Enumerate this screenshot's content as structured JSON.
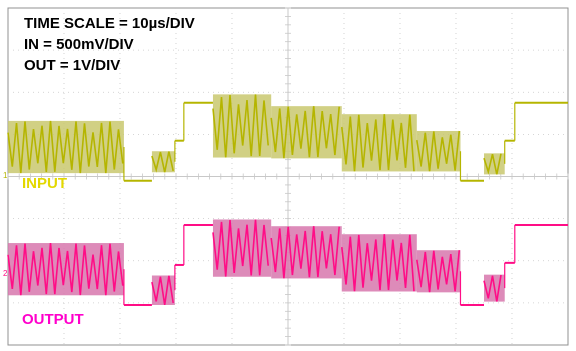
{
  "annotations": {
    "time_scale": "TIME SCALE = 10µs/DIV",
    "in_scale": "IN = 500mV/DIV",
    "out_scale": "OUT = 1V/DIV"
  },
  "labels": {
    "input": "INPUT",
    "output": "OUTPUT"
  },
  "markers": {
    "ch1": "1",
    "ch2": "2"
  },
  "colors": {
    "input": "#b5b500",
    "input_env": "#c9c86e",
    "input_label": "#e3d800",
    "output": "#ff0d86",
    "output_env": "#d777ad",
    "output_label": "#ff00cc",
    "grid": "#c8c8c8",
    "frame": "#909090"
  },
  "chart_data": {
    "type": "line",
    "x_divisions": 10,
    "y_divisions": 8,
    "x_unit": "10µs/DIV",
    "grid": true,
    "series": [
      {
        "name": "INPUT",
        "scale": "500mV/DIV",
        "segments": [
          {
            "x_div": [
              0.0,
              2.07
            ],
            "type": "burst",
            "level_div": 4.7,
            "amp_div": 0.62
          },
          {
            "x_div": [
              2.07,
              2.57
            ],
            "type": "dc",
            "level_div": 3.9
          },
          {
            "x_div": [
              2.57,
              2.98
            ],
            "type": "burst",
            "level_div": 4.35,
            "amp_div": 0.25
          },
          {
            "x_div": [
              2.98,
              3.14
            ],
            "type": "dc",
            "level_div": 4.85
          },
          {
            "x_div": [
              3.14,
              3.66
            ],
            "type": "dc",
            "level_div": 5.75
          },
          {
            "x_div": [
              3.66,
              4.7
            ],
            "type": "burst",
            "level_div": 5.2,
            "amp_div": 0.75
          },
          {
            "x_div": [
              4.7,
              5.96
            ],
            "type": "burst",
            "level_div": 5.05,
            "amp_div": 0.62
          },
          {
            "x_div": [
              5.96,
              7.3
            ],
            "type": "burst",
            "level_div": 4.8,
            "amp_div": 0.68
          },
          {
            "x_div": [
              7.3,
              8.08
            ],
            "type": "burst",
            "level_div": 4.6,
            "amp_div": 0.48
          },
          {
            "x_div": [
              8.08,
              8.5
            ],
            "type": "dc",
            "level_div": 3.9
          },
          {
            "x_div": [
              8.5,
              8.87
            ],
            "type": "burst",
            "level_div": 4.3,
            "amp_div": 0.25
          },
          {
            "x_div": [
              8.87,
              9.05
            ],
            "type": "dc",
            "level_div": 4.85
          },
          {
            "x_div": [
              9.05,
              10.0
            ],
            "type": "dc",
            "level_div": 5.75
          }
        ]
      },
      {
        "name": "OUTPUT",
        "scale": "1V/DIV",
        "segments": [
          {
            "x_div": [
              0.0,
              2.07
            ],
            "type": "burst",
            "level_div": 1.8,
            "amp_div": 0.62
          },
          {
            "x_div": [
              2.07,
              2.57
            ],
            "type": "dc",
            "level_div": 0.95
          },
          {
            "x_div": [
              2.57,
              2.98
            ],
            "type": "burst",
            "level_div": 1.3,
            "amp_div": 0.35
          },
          {
            "x_div": [
              2.98,
              3.14
            ],
            "type": "dc",
            "level_div": 1.9
          },
          {
            "x_div": [
              3.14,
              3.66
            ],
            "type": "dc",
            "level_div": 2.85
          },
          {
            "x_div": [
              3.66,
              4.7
            ],
            "type": "burst",
            "level_div": 2.3,
            "amp_div": 0.68
          },
          {
            "x_div": [
              4.7,
              5.96
            ],
            "type": "burst",
            "level_div": 2.2,
            "amp_div": 0.62
          },
          {
            "x_div": [
              5.96,
              7.3
            ],
            "type": "burst",
            "level_div": 1.95,
            "amp_div": 0.68
          },
          {
            "x_div": [
              7.3,
              8.08
            ],
            "type": "burst",
            "level_div": 1.75,
            "amp_div": 0.5
          },
          {
            "x_div": [
              8.08,
              8.5
            ],
            "type": "dc",
            "level_div": 0.95
          },
          {
            "x_div": [
              8.5,
              8.87
            ],
            "type": "burst",
            "level_div": 1.35,
            "amp_div": 0.32
          },
          {
            "x_div": [
              8.87,
              9.05
            ],
            "type": "dc",
            "level_div": 1.95
          },
          {
            "x_div": [
              9.05,
              10.0
            ],
            "type": "dc",
            "level_div": 2.85
          }
        ]
      }
    ]
  }
}
